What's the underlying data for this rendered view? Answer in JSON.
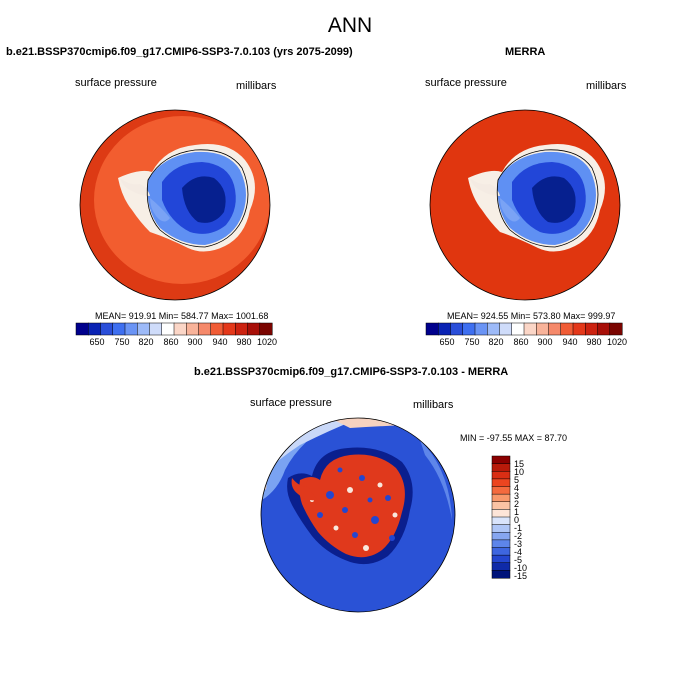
{
  "main_title": "ANN",
  "colors": {
    "ocean_model": "#f04722",
    "ocean_obs": "#e0360f",
    "ice_edge": "#f7f2ec",
    "ice_mid": "#5b8cf4",
    "ice_deep": "#1736cf",
    "ice_core": "#051a9c",
    "diff_ocean": "#2a52d6",
    "diff_land_pos": "#e0391c",
    "diff_land_neg": "#2446d0"
  },
  "panels": [
    {
      "title": "b.e21.BSSP370cmip6.f09_g17.CMIP6-SSP3-7.0.103 (yrs 2075-2099)",
      "left_label": "surface pressure",
      "right_label": "millibars",
      "stats": "MEAN= 919.91   Min= 584.77   Max= 1001.68"
    },
    {
      "title": "MERRA",
      "left_label": "surface pressure",
      "right_label": "millibars",
      "stats": "MEAN= 924.55   Min= 573.80   Max= 999.97"
    },
    {
      "title": "b.e21.BSSP370cmip6.f09_g17.CMIP6-SSP3-7.0.103 - MERRA",
      "left_label": "surface pressure",
      "right_label": "millibars",
      "stats": "MIN = -97.55 MAX =  87.70"
    }
  ],
  "colorbar_abs": {
    "ticks": [
      "650",
      "750",
      "820",
      "860",
      "900",
      "940",
      "980",
      "1020"
    ],
    "colors": [
      "#00008c",
      "#0a23b4",
      "#2a4ed9",
      "#3e6ff0",
      "#6a94f5",
      "#9dbaf8",
      "#cfdcfa",
      "#ffffff",
      "#fbd6c7",
      "#f8b39a",
      "#f5896a",
      "#f05c36",
      "#e4381a",
      "#cc2210",
      "#a80f08",
      "#7a0400"
    ]
  },
  "colorbar_diff": {
    "ticks": [
      "15",
      "10",
      "5",
      "4",
      "3",
      "2",
      "1",
      "0",
      "-1",
      "-2",
      "-3",
      "-4",
      "-5",
      "-10",
      "-15"
    ],
    "colors": [
      "#8b0000",
      "#b81a0a",
      "#d92e14",
      "#ec4520",
      "#f46a3e",
      "#f8986b",
      "#fbc3a4",
      "#fde5d8",
      "#d9e4fb",
      "#afc6f6",
      "#86a6f0",
      "#5d85ea",
      "#3e66e0",
      "#2446cf",
      "#0f2aa8",
      "#00137a"
    ]
  }
}
